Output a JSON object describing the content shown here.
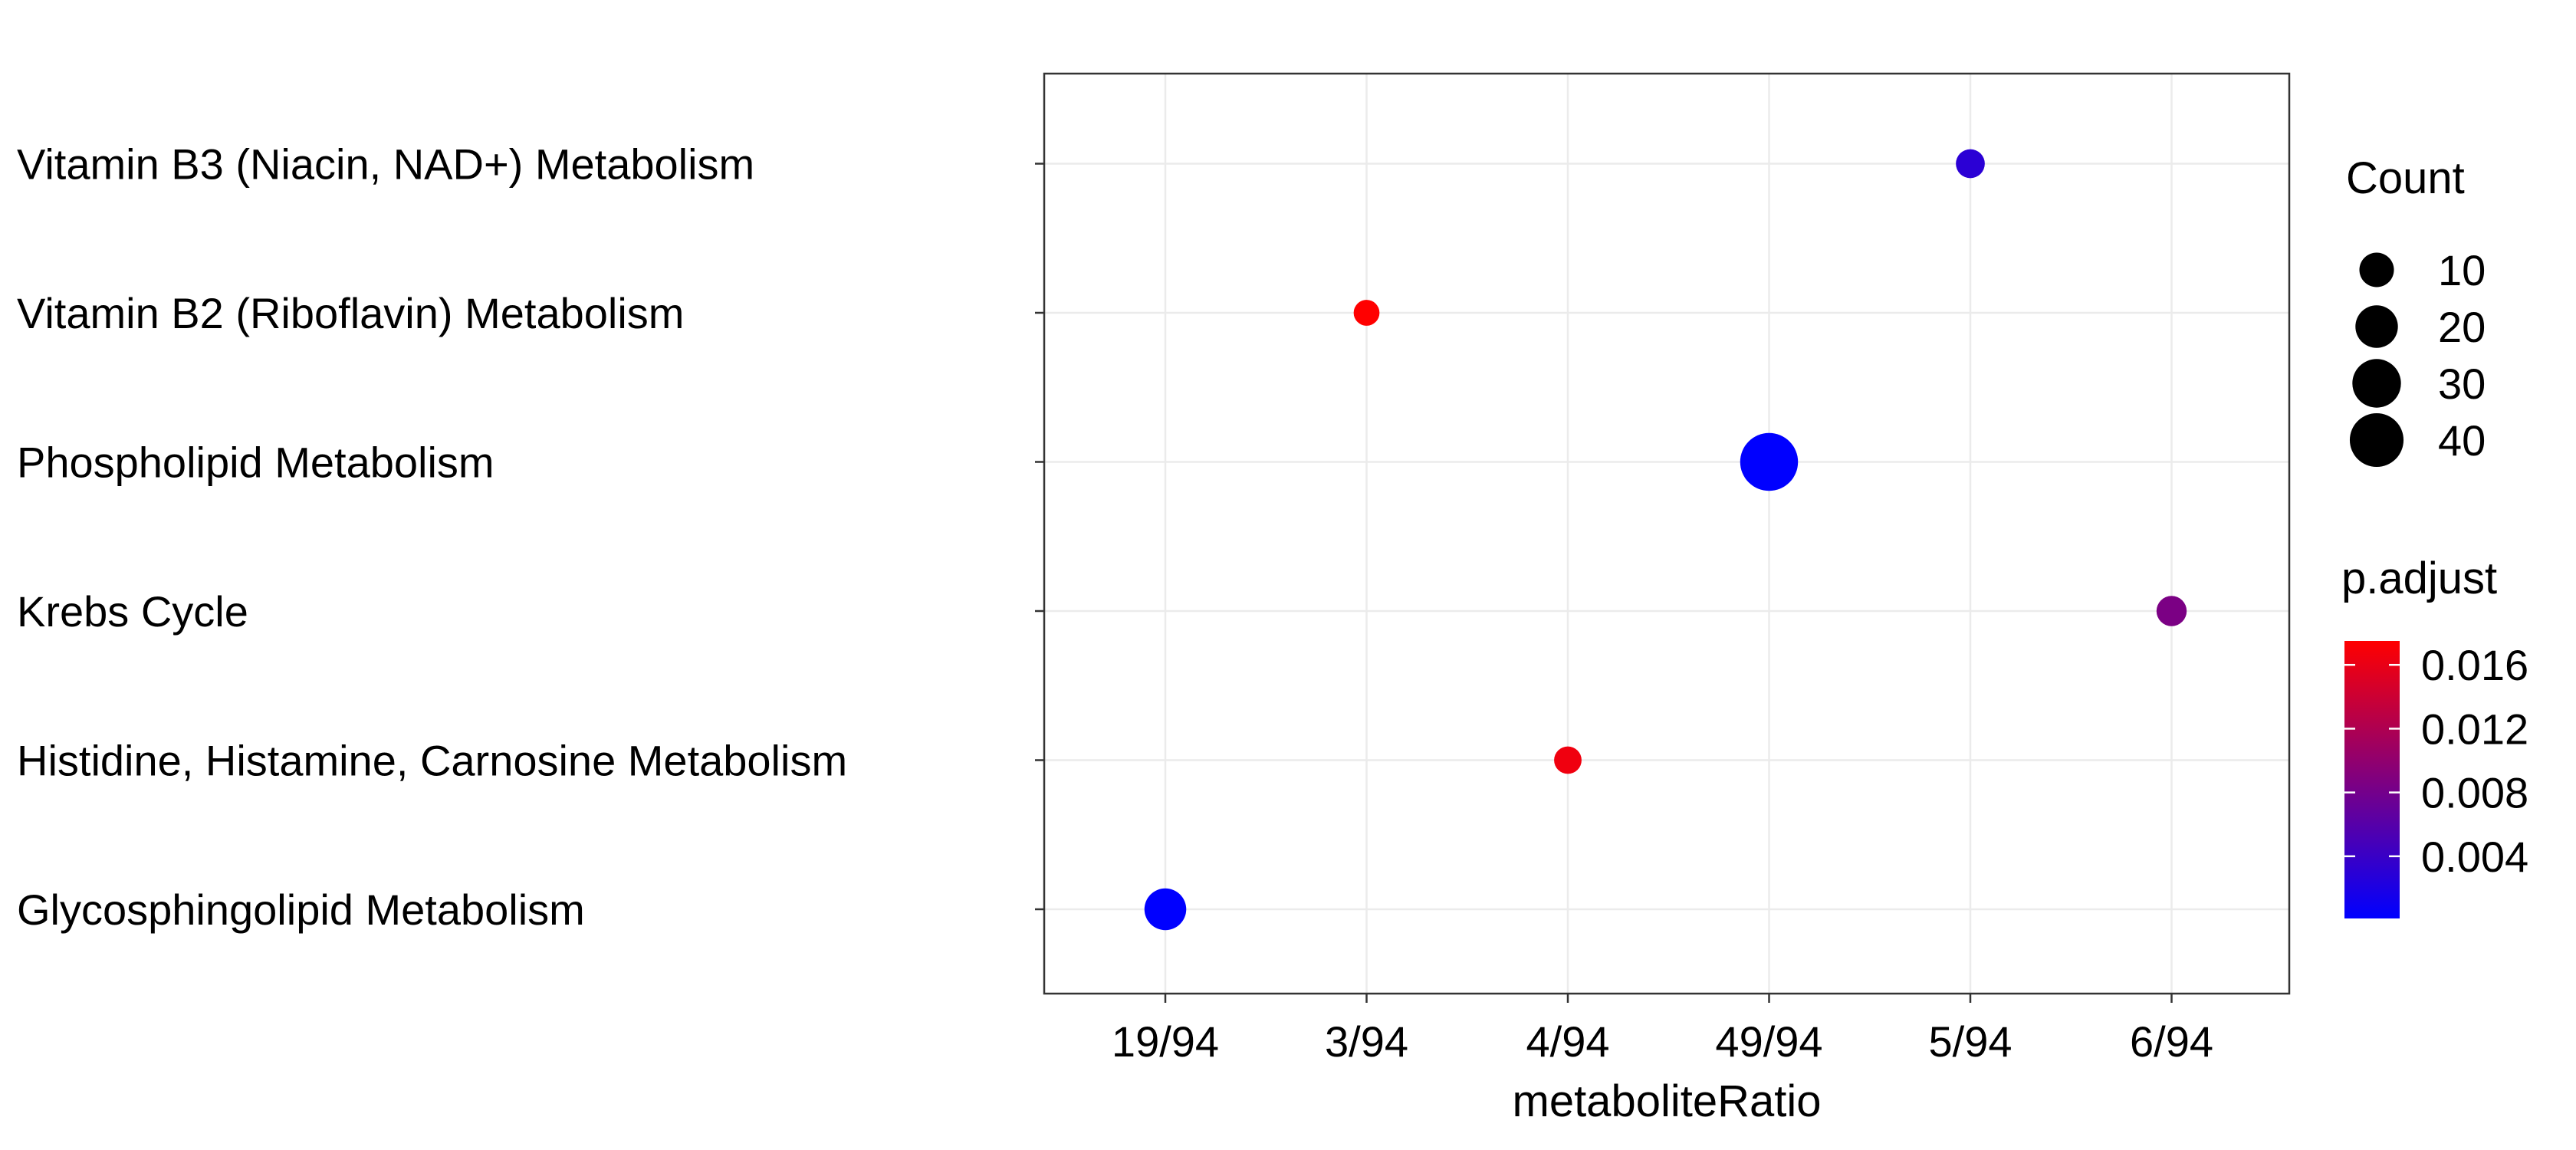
{
  "chart_data": {
    "type": "scatter",
    "title": "",
    "xlabel": "metaboliteRatio",
    "ylabel": "",
    "x_categories": [
      "19/94",
      "3/94",
      "4/94",
      "49/94",
      "5/94",
      "6/94"
    ],
    "y_categories": [
      "Glycosphingolipid Metabolism",
      "Histidine, Histamine, Carnosine Metabolism",
      "Krebs Cycle",
      "Phospholipid Metabolism",
      "Vitamin B2 (Riboflavin) Metabolism",
      "Vitamin B3 (Niacin, NAD+) Metabolism"
    ],
    "points": [
      {
        "pathway": "Vitamin B3 (Niacin, NAD+) Metabolism",
        "metaboliteRatio": "5/94",
        "count": 5,
        "p_adjust": 0.003
      },
      {
        "pathway": "Vitamin B2 (Riboflavin) Metabolism",
        "metaboliteRatio": "3/94",
        "count": 3,
        "p_adjust": 0.0175
      },
      {
        "pathway": "Phospholipid Metabolism",
        "metaboliteRatio": "49/94",
        "count": 49,
        "p_adjust": 0.0001
      },
      {
        "pathway": "Krebs Cycle",
        "metaboliteRatio": "6/94",
        "count": 6,
        "p_adjust": 0.0085
      },
      {
        "pathway": "Histidine, Histamine, Carnosine Metabolism",
        "metaboliteRatio": "4/94",
        "count": 4,
        "p_adjust": 0.0165
      },
      {
        "pathway": "Glycosphingolipid Metabolism",
        "metaboliteRatio": "19/94",
        "count": 19,
        "p_adjust": 0.0001
      }
    ],
    "grid": true,
    "legend": {
      "position": "right",
      "size_title": "Count",
      "size_breaks": [
        10,
        20,
        30,
        40
      ],
      "color_title": "p.adjust",
      "color_breaks": [
        0.004,
        0.008,
        0.012,
        0.016
      ],
      "color_breaks_labels": [
        "0.004",
        "0.008",
        "0.012",
        "0.016"
      ],
      "color_range": [
        0.0001,
        0.0175
      ],
      "color_low": "#0000ff",
      "color_high": "#ff0000"
    },
    "colors": {
      "grid": "#ebebeb",
      "panel_border": "#333333",
      "point_text": "#000000"
    }
  }
}
